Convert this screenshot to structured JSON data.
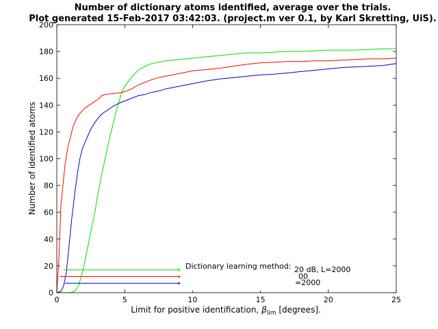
{
  "chart_data": {
    "type": "line",
    "title_line1": "Number of dictionary atoms identified, average over the trials.",
    "title_line2": "Plot generated 15-Feb-2017 03:42:03. (project.m ver 0.1, by Karl Skretting, UiS).",
    "xlabel_prefix": "Limit for positive identification, ",
    "xlabel_symbol": "β",
    "xlabel_sub": "lim",
    "xlabel_suffix": " [degrees].",
    "ylabel": "Number of identified atoms",
    "xlim": [
      0,
      25
    ],
    "ylim": [
      0,
      200
    ],
    "xticks": [
      0,
      5,
      10,
      15,
      20,
      25
    ],
    "yticks": [
      0,
      20,
      40,
      60,
      80,
      100,
      120,
      140,
      160,
      180,
      200
    ],
    "grid": false,
    "legend": {
      "placement": "bottom-center",
      "title": "Dictionary learning method:",
      "entries": [
        "20 dB, L=2000",
        "00",
        "=2000"
      ]
    },
    "series": [
      {
        "color": "#00dd00",
        "x": [
          0,
          1,
          1.3,
          1.6,
          1.8,
          2,
          2.2,
          2.5,
          2.8,
          3.0,
          3.3,
          3.6,
          3.9,
          4.2,
          4.5,
          4.8,
          5.0,
          5.3,
          5.6,
          6.0,
          6.5,
          7.0,
          7.5,
          8.0,
          9.0,
          10,
          11,
          12,
          13,
          14,
          15,
          16,
          17,
          18,
          19,
          20,
          21,
          22,
          23,
          24,
          25
        ],
        "y": [
          0,
          0,
          1,
          5,
          12,
          20,
          30,
          45,
          60,
          72,
          88,
          102,
          116,
          128,
          140,
          150,
          154,
          158,
          162,
          166,
          169,
          171,
          172,
          173,
          174,
          175,
          176,
          177,
          178,
          179,
          179,
          179.5,
          180,
          180,
          180.5,
          181,
          181,
          181,
          181.5,
          182,
          182
        ]
      },
      {
        "color": "#ff0000",
        "x": [
          0,
          0.15,
          0.3,
          0.45,
          0.6,
          0.8,
          1.0,
          1.2,
          1.5,
          1.8,
          2.1,
          2.4,
          2.7,
          3.0,
          3.3,
          3.6,
          4.0,
          4.5,
          5.0,
          5.5,
          6.0,
          6.5,
          7.0,
          7.5,
          8.0,
          8.5,
          9.0,
          9.5,
          10,
          11,
          12,
          13,
          14,
          15,
          16,
          17,
          18,
          19,
          20,
          21,
          22,
          23,
          24,
          25
        ],
        "y": [
          0,
          25,
          65,
          80,
          95,
          108,
          116,
          124,
          131,
          135,
          138,
          140,
          142,
          144,
          147,
          148,
          148.5,
          149,
          150,
          152,
          155,
          157,
          159,
          160.5,
          161.5,
          162.5,
          163.5,
          164.5,
          165.5,
          166.5,
          167.5,
          169,
          170.5,
          171.5,
          172,
          172.5,
          172.5,
          173,
          173,
          173.5,
          174,
          174.5,
          174.5,
          175
        ]
      },
      {
        "color": "#0000cc",
        "x": [
          0,
          0.3,
          0.5,
          0.7,
          0.9,
          1.1,
          1.3,
          1.5,
          1.7,
          1.9,
          2.2,
          2.5,
          2.8,
          3.1,
          3.4,
          3.7,
          4.0,
          4.3,
          4.6,
          5.0,
          5.5,
          6.0,
          6.5,
          7.0,
          7.5,
          8.0,
          9.0,
          10,
          11,
          12,
          13,
          14,
          15,
          16,
          17,
          18,
          19,
          20,
          21,
          22,
          23,
          24,
          25
        ],
        "y": [
          0,
          1,
          5,
          15,
          35,
          55,
          72,
          88,
          100,
          108,
          115,
          122,
          127,
          131,
          134,
          136,
          138,
          140,
          141.5,
          143,
          145,
          147,
          148,
          149.5,
          150.5,
          152,
          154,
          156,
          158,
          159.5,
          160.5,
          161.5,
          162.5,
          163,
          164,
          165,
          166,
          167,
          168,
          168.5,
          169,
          169.5,
          171
        ]
      },
      {
        "color": "#00dd00",
        "x": [
          0.5,
          9.0
        ],
        "y": [
          17,
          17
        ]
      },
      {
        "color": "#ff0000",
        "x": [
          0.2,
          9.0
        ],
        "y": [
          12,
          12
        ]
      },
      {
        "color": "#0000cc",
        "x": [
          0.6,
          9.0
        ],
        "y": [
          7,
          7
        ]
      }
    ]
  }
}
